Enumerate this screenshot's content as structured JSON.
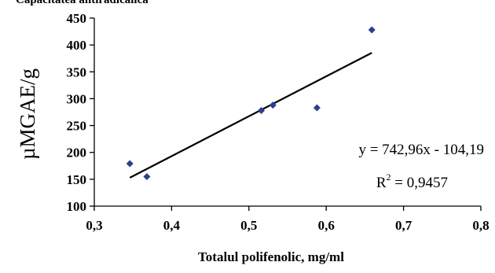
{
  "chart_data": {
    "type": "scatter",
    "title": "Capacitatea antiradicalica",
    "xlabel": "Totalul polifenolic, mg/ml",
    "ylabel": "µMGAE/g",
    "xlim": [
      0.3,
      0.8
    ],
    "ylim": [
      100,
      450
    ],
    "x_ticks": [
      "0,3",
      "0,4",
      "0,5",
      "0,6",
      "0,7",
      "0,8"
    ],
    "y_ticks": [
      "100",
      "150",
      "200",
      "250",
      "300",
      "350",
      "400",
      "450"
    ],
    "points": [
      {
        "x": 0.346,
        "y": 179
      },
      {
        "x": 0.368,
        "y": 155
      },
      {
        "x": 0.516,
        "y": 278
      },
      {
        "x": 0.531,
        "y": 288
      },
      {
        "x": 0.588,
        "y": 283
      },
      {
        "x": 0.659,
        "y": 428
      }
    ],
    "trendline": {
      "type": "linear",
      "slope": 742.96,
      "intercept": -104.19,
      "x_range": [
        0.346,
        0.659
      ]
    },
    "equation": "y = 742,96x - 104,19",
    "r2_label": "R",
    "r2_sup": "2",
    "r2_value": " = 0,9457",
    "marker_color": "#2b3f8c",
    "line_color": "#000000",
    "grid": false,
    "legend": "none"
  }
}
